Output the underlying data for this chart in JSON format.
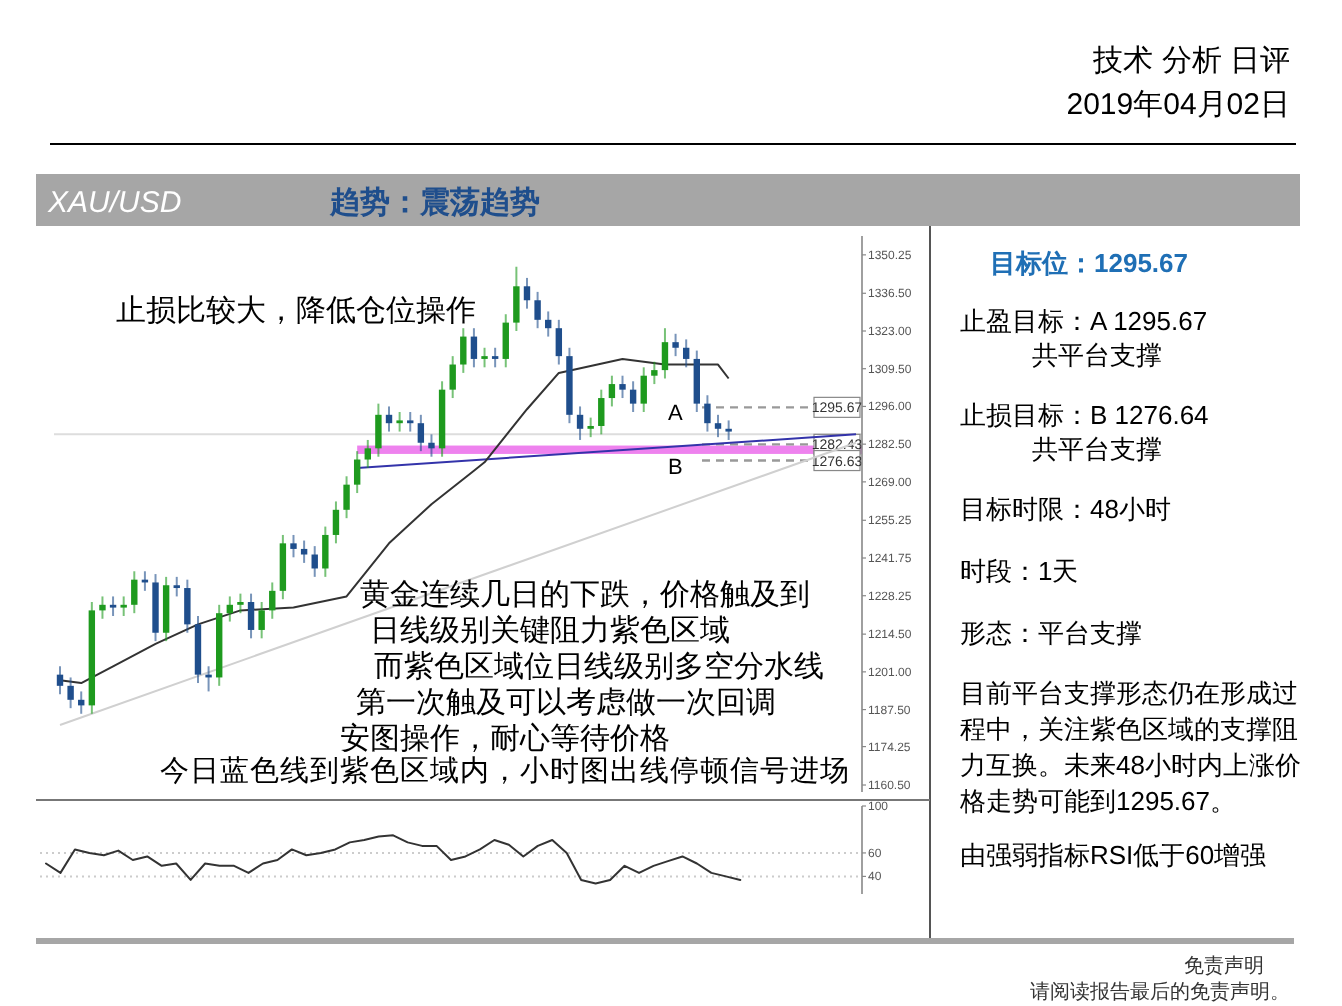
{
  "chart_data": [
    {
      "type": "candlestick",
      "title": "XAU/USD",
      "subtitle": "趋势：震荡趋势",
      "categories": [
        null,
        null,
        null,
        null,
        null,
        null,
        null,
        null,
        null,
        null,
        null,
        null,
        null,
        null,
        null,
        null,
        null,
        null,
        null,
        null,
        null,
        null,
        null,
        null,
        null,
        null,
        null,
        null,
        null,
        null,
        null,
        null,
        null,
        null,
        null,
        null,
        null,
        null,
        null,
        null,
        null,
        null,
        null,
        null,
        null,
        null,
        null,
        null,
        null,
        null,
        null,
        null,
        null,
        null,
        null,
        null,
        null,
        null,
        null,
        null,
        null,
        null,
        null,
        null,
        null,
        null,
        null,
        null,
        null,
        null,
        null,
        null,
        null,
        null,
        null,
        null
      ],
      "ohlc": [
        [
          1200,
          1203,
          1193,
          1196
        ],
        [
          1196,
          1199,
          1188,
          1191
        ],
        [
          1191,
          1194,
          1186,
          1189
        ],
        [
          1189,
          1226,
          1186,
          1223
        ],
        [
          1223,
          1228,
          1220,
          1225
        ],
        [
          1225,
          1228,
          1221,
          1224
        ],
        [
          1224,
          1228,
          1221,
          1225
        ],
        [
          1225,
          1237,
          1222,
          1234
        ],
        [
          1234,
          1237,
          1230,
          1233
        ],
        [
          1233,
          1236,
          1212,
          1215
        ],
        [
          1215,
          1235,
          1212,
          1232
        ],
        [
          1232,
          1235,
          1228,
          1231
        ],
        [
          1231,
          1234,
          1215,
          1218
        ],
        [
          1218,
          1221,
          1197,
          1200
        ],
        [
          1200,
          1203,
          1194,
          1199
        ],
        [
          1199,
          1225,
          1196,
          1222
        ],
        [
          1222,
          1228,
          1219,
          1225
        ],
        [
          1225,
          1229,
          1222,
          1226
        ],
        [
          1226,
          1229,
          1213,
          1216
        ],
        [
          1216,
          1226,
          1213,
          1223
        ],
        [
          1223,
          1233,
          1220,
          1230
        ],
        [
          1230,
          1250,
          1227,
          1247
        ],
        [
          1247,
          1250,
          1242,
          1245
        ],
        [
          1245,
          1248,
          1240,
          1243
        ],
        [
          1243,
          1246,
          1235,
          1238
        ],
        [
          1238,
          1253,
          1235,
          1250
        ],
        [
          1250,
          1262,
          1247,
          1259
        ],
        [
          1259,
          1271,
          1256,
          1268
        ],
        [
          1268,
          1280,
          1265,
          1277
        ],
        [
          1277,
          1284,
          1274,
          1281
        ],
        [
          1281,
          1297,
          1278,
          1293
        ],
        [
          1293,
          1296,
          1287,
          1290
        ],
        [
          1290,
          1294,
          1287,
          1291
        ],
        [
          1291,
          1294,
          1287,
          1290
        ],
        [
          1290,
          1293,
          1280,
          1283
        ],
        [
          1283,
          1286,
          1278,
          1281
        ],
        [
          1281,
          1305,
          1278,
          1302
        ],
        [
          1302,
          1314,
          1299,
          1311
        ],
        [
          1311,
          1324,
          1308,
          1321
        ],
        [
          1321,
          1324,
          1310,
          1313
        ],
        [
          1313,
          1317,
          1310,
          1314
        ],
        [
          1314,
          1317,
          1310,
          1313
        ],
        [
          1313,
          1329,
          1310,
          1326
        ],
        [
          1326,
          1346,
          1323,
          1339
        ],
        [
          1339,
          1342,
          1331,
          1334
        ],
        [
          1334,
          1337,
          1324,
          1327
        ],
        [
          1327,
          1330,
          1321,
          1324
        ],
        [
          1324,
          1327,
          1311,
          1314
        ],
        [
          1314,
          1317,
          1290,
          1293
        ],
        [
          1293,
          1296,
          1284,
          1288
        ],
        [
          1288,
          1292,
          1285,
          1289
        ],
        [
          1289,
          1302,
          1286,
          1299
        ],
        [
          1299,
          1307,
          1296,
          1304
        ],
        [
          1304,
          1307,
          1299,
          1302
        ],
        [
          1302,
          1305,
          1294,
          1297
        ],
        [
          1297,
          1310,
          1294,
          1307
        ],
        [
          1307,
          1312,
          1304,
          1309
        ],
        [
          1309,
          1324,
          1306,
          1319
        ],
        [
          1319,
          1322,
          1314,
          1317
        ],
        [
          1317,
          1320,
          1310,
          1313
        ],
        [
          1313,
          1316,
          1294,
          1297
        ],
        [
          1297,
          1300,
          1287,
          1290
        ],
        [
          1290,
          1293,
          1285,
          1288
        ],
        [
          1288,
          1291,
          1284,
          1287
        ],
        null,
        null,
        null,
        null,
        null,
        null,
        null,
        null,
        null,
        null,
        null,
        null
      ],
      "colors": [
        "#1f4e8c",
        "#1f4e8c",
        "#1f4e8c",
        "#1e9a1e",
        "#1e9a1e",
        "#1f4e8c",
        "#1e9a1e",
        "#1e9a1e",
        "#1f4e8c",
        "#1f4e8c",
        "#1e9a1e",
        "#1f4e8c",
        "#1f4e8c",
        "#1f4e8c",
        "#1f4e8c",
        "#1e9a1e",
        "#1e9a1e",
        "#1e9a1e",
        "#1f4e8c",
        "#1e9a1e",
        "#1e9a1e",
        "#1e9a1e",
        "#1f4e8c",
        "#1f4e8c",
        "#1f4e8c",
        "#1e9a1e",
        "#1e9a1e",
        "#1e9a1e",
        "#1e9a1e",
        "#1e9a1e",
        "#1e9a1e",
        "#1f4e8c",
        "#1e9a1e",
        "#1f4e8c",
        "#1f4e8c",
        "#1f4e8c",
        "#1e9a1e",
        "#1e9a1e",
        "#1e9a1e",
        "#1f4e8c",
        "#1e9a1e",
        "#1f4e8c",
        "#1e9a1e",
        "#1e9a1e",
        "#1f4e8c",
        "#1f4e8c",
        "#1f4e8c",
        "#1f4e8c",
        "#1f4e8c",
        "#1f4e8c",
        "#1e9a1e",
        "#1e9a1e",
        "#1e9a1e",
        "#1f4e8c",
        "#1f4e8c",
        "#1e9a1e",
        "#1e9a1e",
        "#1e9a1e",
        "#1f4e8c",
        "#1f4e8c",
        "#1f4e8c",
        "#1f4e8c",
        "#1f4e8c",
        "#1f4e8c",
        null,
        null,
        null,
        null,
        null,
        null,
        null,
        null,
        null,
        null,
        null,
        null
      ],
      "series": [
        {
          "type": "line",
          "color": "#d0d0d0",
          "values": [
            1182,
            null,
            null,
            null,
            null,
            null,
            null,
            null,
            null,
            null,
            null,
            null,
            null,
            null,
            null,
            null,
            null,
            null,
            null,
            null,
            null,
            null,
            null,
            null,
            null,
            null,
            null,
            null,
            null,
            null,
            null,
            null,
            null,
            null,
            null,
            null,
            null,
            null,
            null,
            null,
            null,
            null,
            null,
            null,
            null,
            null,
            null,
            null,
            null,
            null,
            null,
            null,
            null,
            null,
            null,
            null,
            null,
            null,
            null,
            null,
            null,
            null,
            null,
            null,
            null,
            null,
            null,
            null,
            null,
            null,
            null,
            null,
            null,
            null,
            null,
            1283
          ]
        },
        {
          "type": "line",
          "color": "#3333aa",
          "values": [
            null,
            null,
            null,
            null,
            null,
            null,
            null,
            null,
            null,
            null,
            null,
            null,
            null,
            null,
            null,
            null,
            null,
            null,
            null,
            null,
            null,
            null,
            null,
            null,
            null,
            null,
            null,
            null,
            1274,
            null,
            null,
            null,
            null,
            null,
            null,
            null,
            null,
            null,
            null,
            null,
            null,
            null,
            null,
            null,
            null,
            null,
            null,
            null,
            null,
            null,
            null,
            null,
            null,
            null,
            null,
            null,
            null,
            null,
            null,
            null,
            null,
            null,
            null,
            null,
            null,
            null,
            null,
            null,
            null,
            null,
            null,
            null,
            null,
            null,
            null,
            1286
          ]
        },
        {
          "type": "line",
          "color": "#333333",
          "values": [
            1198,
            null,
            1197,
            null,
            null,
            1203,
            null,
            null,
            null,
            1211,
            null,
            null,
            null,
            1218,
            null,
            null,
            null,
            1223,
            null,
            null,
            null,
            null,
            1224,
            null,
            null,
            null,
            null,
            1228,
            null,
            null,
            null,
            1247,
            null,
            null,
            null,
            1261,
            null,
            null,
            null,
            1273,
            1276,
            null,
            null,
            null,
            1295,
            null,
            null,
            1308,
            null,
            null,
            null,
            null,
            null,
            1313,
            null,
            null,
            null,
            1311,
            null,
            null,
            null,
            null,
            1311,
            1306,
            null,
            null,
            null,
            null,
            null,
            null,
            null,
            null,
            null,
            null,
            null,
            null
          ]
        }
      ],
      "ylim": [
        1158,
        1357
      ],
      "yticks": [
        1350.25,
        {
          "value": 1336.5,
          "label": "1336.50"
        },
        {
          "value": 1323,
          "label": "1323.00"
        },
        {
          "value": 1309.5,
          "label": "1309.50"
        },
        {
          "value": 1296,
          "label": "1296.00"
        },
        {
          "value": 1282.5,
          "label": "1282.50"
        },
        {
          "value": 1269,
          "label": "1269.00"
        },
        1255.25,
        1241.75,
        1228.25,
        {
          "value": 1214.5,
          "label": "1214.50"
        },
        {
          "value": 1201,
          "label": "1201.00"
        },
        {
          "value": 1187.5,
          "label": "1187.50"
        },
        1174.25,
        {
          "value": 1160.5,
          "label": "1160.50"
        }
      ],
      "bands": [
        {
          "axis": "y",
          "from": 1279,
          "to": 1282,
          "color": "#ee82ee"
        }
      ],
      "ref_lines": [
        {
          "axis": "y",
          "value": 1286,
          "color": "#dddddd",
          "line_style": "solid"
        },
        {
          "axis": "y",
          "value": 1295.67,
          "label": "1295.67",
          "color": "#999999",
          "line_style": "dashed"
        },
        {
          "axis": "y",
          "value": 1282.43,
          "label": "1282.43",
          "color": "#999999",
          "line_style": "dashed"
        },
        {
          "axis": "y",
          "value": 1276.63,
          "label": "1276.63",
          "color": "#999999",
          "line_style": "dashed"
        }
      ],
      "annotations": [
        "技术 分析 日评",
        "2019年04月02日",
        "止损比较大，降低仓位操作",
        "黄金连续几日的下跌，价格触及到",
        "日线级别关键阻力紫色区域",
        "而紫色区域位日线级别多空分水线",
        "第一次触及可以考虑做一次回调",
        "安图操作，耐心等待价格",
        "今日蓝色线到紫色区域内，小时图出线停顿信号进场",
        "目标位：1295.67",
        "止盈目标：A  1295.67",
        "共平台支撑",
        "止损目标：B 1276.64",
        "共平台支撑",
        "目标时限：48小时",
        "时段：1天",
        "形态：平台支撑",
        "目前平台支撑形态仍在形成过",
        "程中，关注紫色区域的支撑阻",
        "力互换。未来48小时内上涨价",
        "格走势可能到1295.67。",
        "由强弱指标RSI低于60增强",
        "免责声明",
        "请阅读报告最后的免责声明。",
        "A",
        "B"
      ]
    },
    {
      "type": "line",
      "color": "#333333",
      "categories": [
        null,
        null,
        null,
        null,
        null,
        null,
        null,
        null,
        null,
        null,
        null,
        null,
        null,
        null,
        null,
        null,
        null,
        null,
        null,
        null,
        null,
        null,
        null,
        null,
        null,
        null,
        null,
        null,
        null,
        null,
        null,
        null,
        null,
        null,
        null,
        null,
        null,
        null,
        null,
        null,
        null,
        null,
        null,
        null,
        null,
        null,
        null,
        null,
        null,
        null,
        null,
        null,
        null,
        null,
        null,
        null,
        null
      ],
      "values": [
        51,
        43,
        63,
        60,
        58,
        62,
        54,
        57,
        49,
        51,
        37,
        51,
        49,
        49,
        43,
        51,
        54,
        63,
        58,
        60,
        63,
        69,
        71,
        74,
        75,
        69,
        66,
        66,
        54,
        57,
        63,
        71,
        67,
        57,
        66,
        71,
        60,
        37,
        34,
        37,
        49,
        43,
        49,
        53,
        57,
        51,
        43,
        40,
        37,
        null,
        null,
        null,
        null,
        null,
        null,
        null,
        null
      ],
      "ylim": [
        25,
        100
      ],
      "yticks": [
        100,
        60,
        40
      ],
      "ref_lines": [
        {
          "axis": "y",
          "value": 60,
          "color": "#cccccc",
          "line_style": "dotted"
        },
        {
          "axis": "y",
          "value": 40,
          "color": "#cccccc",
          "line_style": "dotted"
        }
      ]
    }
  ]
}
